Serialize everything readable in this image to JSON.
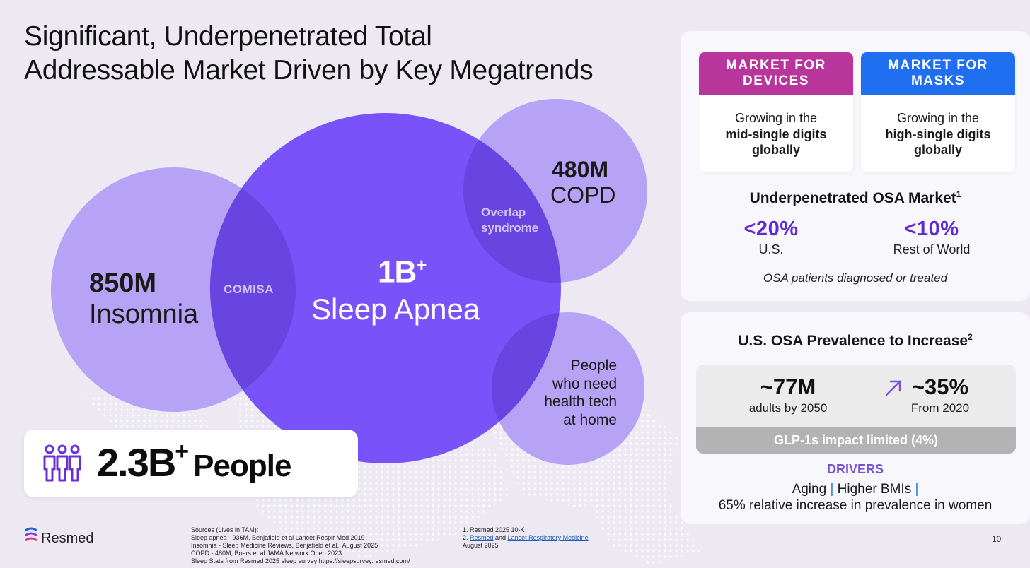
{
  "title": {
    "line1": "Significant, Underpenetrated Total",
    "line2": "Addressable Market Driven by Key Megatrends"
  },
  "venn": {
    "insomnia": {
      "value": "850M",
      "label": "Insomnia"
    },
    "sleep_apnea": {
      "value": "1B",
      "sup": "+",
      "label": "Sleep Apnea"
    },
    "copd": {
      "value": "480M",
      "label": "COPD"
    },
    "home": {
      "line1": "People",
      "line2": "who need",
      "line3": "health tech",
      "line4": "at home"
    },
    "comisa": "COMISA",
    "overlap": {
      "line1": "Overlap",
      "line2": "syndrome"
    },
    "colors": {
      "main": "#7a52fa",
      "light": "#b6a3f5",
      "overlap": "#6845e0"
    }
  },
  "people": {
    "value": "2.3B",
    "sup": "+",
    "label": "People",
    "icon": "people-group-icon"
  },
  "market_devices": {
    "header1": "MARKET FOR",
    "header2": "DEVICES",
    "line1": "Growing in the",
    "line2": "mid-single digits",
    "line3": "globally",
    "color": "#b8359c"
  },
  "market_masks": {
    "header1": "MARKET FOR",
    "header2": "MASKS",
    "line1": "Growing in the",
    "line2": "high-single digits",
    "line3": "globally",
    "color": "#1f6ff0"
  },
  "osa_market": {
    "title": "Underpenetrated OSA Market",
    "sup": "1",
    "us_value": "<20%",
    "us_label": "U.S.",
    "row_value": "<10%",
    "row_label": "Rest of World",
    "note": "OSA patients diagnosed or treated"
  },
  "prevalence": {
    "title": "U.S. OSA Prevalence to Increase",
    "sup": "2",
    "adults_value": "~77M",
    "adults_label": "adults by 2050",
    "increase_value": "~35%",
    "increase_label": "From 2020",
    "arrow_icon": "trend-up-arrow-icon",
    "glp": "GLP-1s impact limited (4%)",
    "drivers_title": "DRIVERS",
    "driver1": "Aging",
    "driver2": "Higher BMIs",
    "driver3": "65% relative increase in prevalence in women"
  },
  "footer": {
    "logo": "Resmed",
    "sources": [
      "Sources (Lives in TAM):",
      "Sleep apnea - 936M, Benjafield et al Lancet Respir Med 2019",
      "Insomnia - Sleep Medicine Reviews, Benjafield et al., August 2025",
      "COPD - 480M, Boers et al JAMA Network Open 2023"
    ],
    "stats_prefix": "Sleep Stats from Resmed 2025 sleep survey ",
    "stats_link": "https://sleepsurvey.resmed.com/",
    "ref1": "1. Resmed 2025 10-K",
    "ref2_prefix": "2. ",
    "ref2_link1": "Resmed",
    "ref2_mid": " and ",
    "ref2_link2": "Lancet Respiratory Medicine",
    "ref2_date": "August 2025",
    "page": "10"
  }
}
